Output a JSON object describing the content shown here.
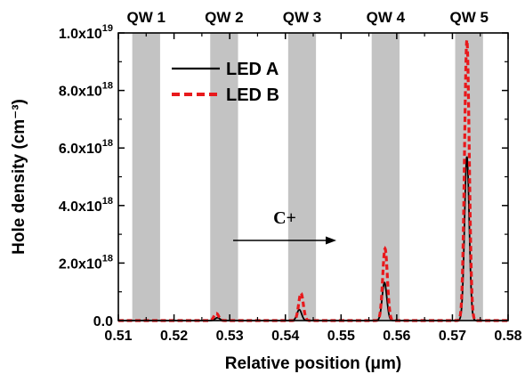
{
  "chart_data": {
    "type": "line",
    "xlabel": "Relative position (μm)",
    "ylabel": "Hole density (cm⁻³)",
    "xlim": [
      0.51,
      0.58
    ],
    "ylim": [
      0,
      1e+19
    ],
    "grid": false,
    "legend_placement": "top-left",
    "x_ticks": [
      "0.51",
      "0.52",
      "0.53",
      "0.54",
      "0.55",
      "0.56",
      "0.57",
      "0.58"
    ],
    "y_ticks": [
      {
        "mantissa": "0.0",
        "exp": ""
      },
      {
        "mantissa": "2.0x10",
        "exp": "18"
      },
      {
        "mantissa": "4.0x10",
        "exp": "18"
      },
      {
        "mantissa": "6.0x10",
        "exp": "18"
      },
      {
        "mantissa": "8.0x10",
        "exp": "18"
      },
      {
        "mantissa": "1.0x10",
        "exp": "19"
      }
    ],
    "quantum_wells": [
      {
        "label": "QW 1",
        "x_start": 0.5125,
        "x_end": 0.5175
      },
      {
        "label": "QW 2",
        "x_start": 0.5265,
        "x_end": 0.5315
      },
      {
        "label": "QW 3",
        "x_start": 0.5405,
        "x_end": 0.5455
      },
      {
        "label": "QW 4",
        "x_start": 0.5555,
        "x_end": 0.5605
      },
      {
        "label": "QW 5",
        "x_start": 0.5705,
        "x_end": 0.5755
      }
    ],
    "series": [
      {
        "name": "LED A",
        "color": "#000000",
        "style": "solid",
        "peaks": [
          {
            "x": 0.5278,
            "y": 1e+17
          },
          {
            "x": 0.5425,
            "y": 3.8e+17
          },
          {
            "x": 0.5578,
            "y": 1.32e+18
          },
          {
            "x": 0.5726,
            "y": 5.7e+18
          }
        ]
      },
      {
        "name": "LED B",
        "color": "#e8191c",
        "style": "dashed",
        "peaks": [
          {
            "x": 0.5276,
            "y": 2.5e+17
          },
          {
            "x": 0.5428,
            "y": 9.5e+17
          },
          {
            "x": 0.5579,
            "y": 2.5e+18
          },
          {
            "x": 0.5726,
            "y": 9.75e+18
          }
        ]
      }
    ],
    "annotation": {
      "text": "C+"
    },
    "colors": {
      "well": "#c3c3c3",
      "axis": "#000000"
    }
  }
}
